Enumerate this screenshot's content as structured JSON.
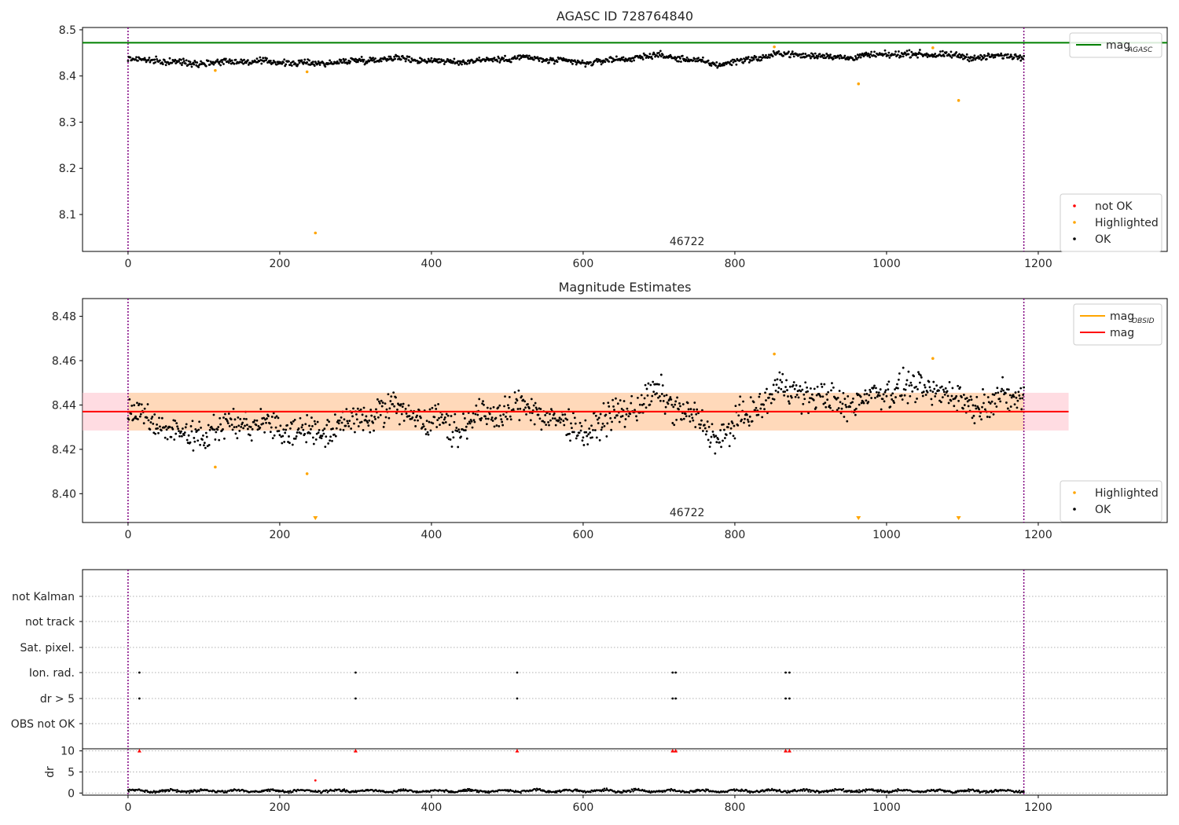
{
  "chart_data": [
    {
      "type": "scatter",
      "title": "AGASC ID 728764840",
      "annotation": "46722",
      "xlim": [
        -60,
        1370
      ],
      "ylim": [
        8.02,
        8.505
      ],
      "xticks": [
        0,
        200,
        400,
        600,
        800,
        1000,
        1200
      ],
      "yticks": [
        8.1,
        8.2,
        8.3,
        8.4,
        8.5
      ],
      "ytick_labels": [
        "8.1",
        "8.2",
        "8.3",
        "8.4",
        "8.5"
      ],
      "vlines": [
        0,
        1181
      ],
      "hline": {
        "name": "mag",
        "subscript": "AGASC",
        "y": 8.472,
        "color": "#008000"
      },
      "ok_series": {
        "name": "OK",
        "color": "#000000",
        "x_range": [
          0,
          1181
        ],
        "baseline": [
          [
            0,
            8.437
          ],
          [
            80,
            8.428
          ],
          [
            150,
            8.432
          ],
          [
            250,
            8.427
          ],
          [
            350,
            8.439
          ],
          [
            430,
            8.43
          ],
          [
            520,
            8.44
          ],
          [
            600,
            8.428
          ],
          [
            700,
            8.445
          ],
          [
            780,
            8.425
          ],
          [
            860,
            8.448
          ],
          [
            950,
            8.44
          ],
          [
            1000,
            8.447
          ],
          [
            1060,
            8.447
          ],
          [
            1120,
            8.44
          ],
          [
            1181,
            8.445
          ]
        ],
        "scatter": 0.006
      },
      "highlighted": {
        "name": "Highlighted",
        "color": "#ffa500",
        "points": [
          [
            115,
            8.412
          ],
          [
            236,
            8.409
          ],
          [
            247,
            8.06
          ],
          [
            852,
            8.463
          ],
          [
            963,
            8.383
          ],
          [
            1061,
            8.461
          ],
          [
            1095,
            8.347
          ]
        ]
      },
      "legend_upper": {
        "position": "upper right",
        "entries": [
          {
            "name": "mag",
            "subscript": "AGASC",
            "color": "#008000"
          }
        ]
      },
      "legend_lower": {
        "position": "lower right",
        "entries": [
          {
            "name": "not OK",
            "color": "#ff0000"
          },
          {
            "name": "Highlighted",
            "color": "#ffa500"
          },
          {
            "name": "OK",
            "color": "#000000"
          }
        ]
      }
    },
    {
      "type": "scatter",
      "title": "Magnitude Estimates",
      "annotation": "46722",
      "xlim": [
        -60,
        1370
      ],
      "ylim": [
        8.387,
        8.488
      ],
      "xticks": [
        0,
        200,
        400,
        600,
        800,
        1000,
        1200
      ],
      "yticks": [
        8.4,
        8.42,
        8.44,
        8.46,
        8.48
      ],
      "ytick_labels": [
        "8.40",
        "8.42",
        "8.44",
        "8.46",
        "8.48"
      ],
      "vlines": [
        0,
        1181
      ],
      "mag": {
        "name": "mag",
        "y": 8.437,
        "x_range": [
          -60,
          1240
        ],
        "band": [
          8.4285,
          8.4455
        ],
        "color": "#ff0000"
      },
      "mag_obsid": {
        "name": "mag",
        "subscript": "OBSID",
        "y": 8.437,
        "x_range": [
          0,
          1181
        ],
        "band": [
          8.4285,
          8.4455
        ],
        "color": "#ffa500"
      },
      "ok_series": {
        "name": "OK",
        "color": "#000000",
        "x_range": [
          0,
          1181
        ],
        "baseline": [
          [
            0,
            8.436
          ],
          [
            80,
            8.426
          ],
          [
            150,
            8.432
          ],
          [
            250,
            8.427
          ],
          [
            350,
            8.439
          ],
          [
            430,
            8.43
          ],
          [
            520,
            8.44
          ],
          [
            600,
            8.428
          ],
          [
            700,
            8.445
          ],
          [
            780,
            8.425
          ],
          [
            860,
            8.448
          ],
          [
            950,
            8.44
          ],
          [
            1000,
            8.447
          ],
          [
            1060,
            8.447
          ],
          [
            1120,
            8.44
          ],
          [
            1181,
            8.445
          ]
        ],
        "scatter": 0.006
      },
      "highlighted": {
        "name": "Highlighted",
        "color": "#ffa500",
        "points": [
          [
            115,
            8.412
          ],
          [
            236,
            8.409
          ],
          [
            852,
            8.463
          ],
          [
            1061,
            8.461
          ]
        ],
        "offscale_below": [
          247,
          963,
          1095
        ]
      },
      "legend_upper": {
        "position": "upper right",
        "entries": [
          {
            "name": "mag",
            "subscript": "OBSID",
            "color": "#ffa500"
          },
          {
            "name": "mag",
            "color": "#ff0000"
          }
        ]
      },
      "legend_lower": {
        "position": "lower right",
        "entries": [
          {
            "name": "Highlighted",
            "color": "#ffa500"
          },
          {
            "name": "OK",
            "color": "#000000"
          }
        ]
      }
    },
    {
      "type": "scatter",
      "title": "",
      "xlim": [
        -60,
        1370
      ],
      "xticks": [
        0,
        200,
        400,
        600,
        800,
        1000,
        1200
      ],
      "vlines": [
        0,
        1181
      ],
      "flag_rows": [
        "not Kalman",
        "not track",
        "Sat. pixel.",
        "Ion. rad.",
        "dr > 5",
        "OBS not OK"
      ],
      "flagged_x": {
        "Ion. rad.": [
          15,
          300,
          513,
          718,
          722,
          867,
          872
        ],
        "dr > 5": [
          15,
          300,
          513,
          718,
          722,
          867,
          872
        ]
      }
    },
    {
      "type": "scatter",
      "title": "",
      "ylabel": "dr",
      "xlim": [
        -60,
        1370
      ],
      "ylim": [
        -0.5,
        10.5
      ],
      "xticks": [
        0,
        200,
        400,
        600,
        800,
        1000,
        1200
      ],
      "yticks": [
        0,
        5,
        10
      ],
      "vlines": [
        0,
        1181
      ],
      "dr_series": {
        "name": "OK",
        "color": "#000000",
        "x_range": [
          0,
          1181
        ],
        "level": 0.5,
        "scatter": 0.35
      },
      "red_points": {
        "color": "#ff0000",
        "x": [
          15,
          300,
          513,
          718,
          722,
          867,
          872
        ],
        "y": 10
      },
      "red_extra": [
        [
          247,
          3
        ]
      ]
    }
  ]
}
